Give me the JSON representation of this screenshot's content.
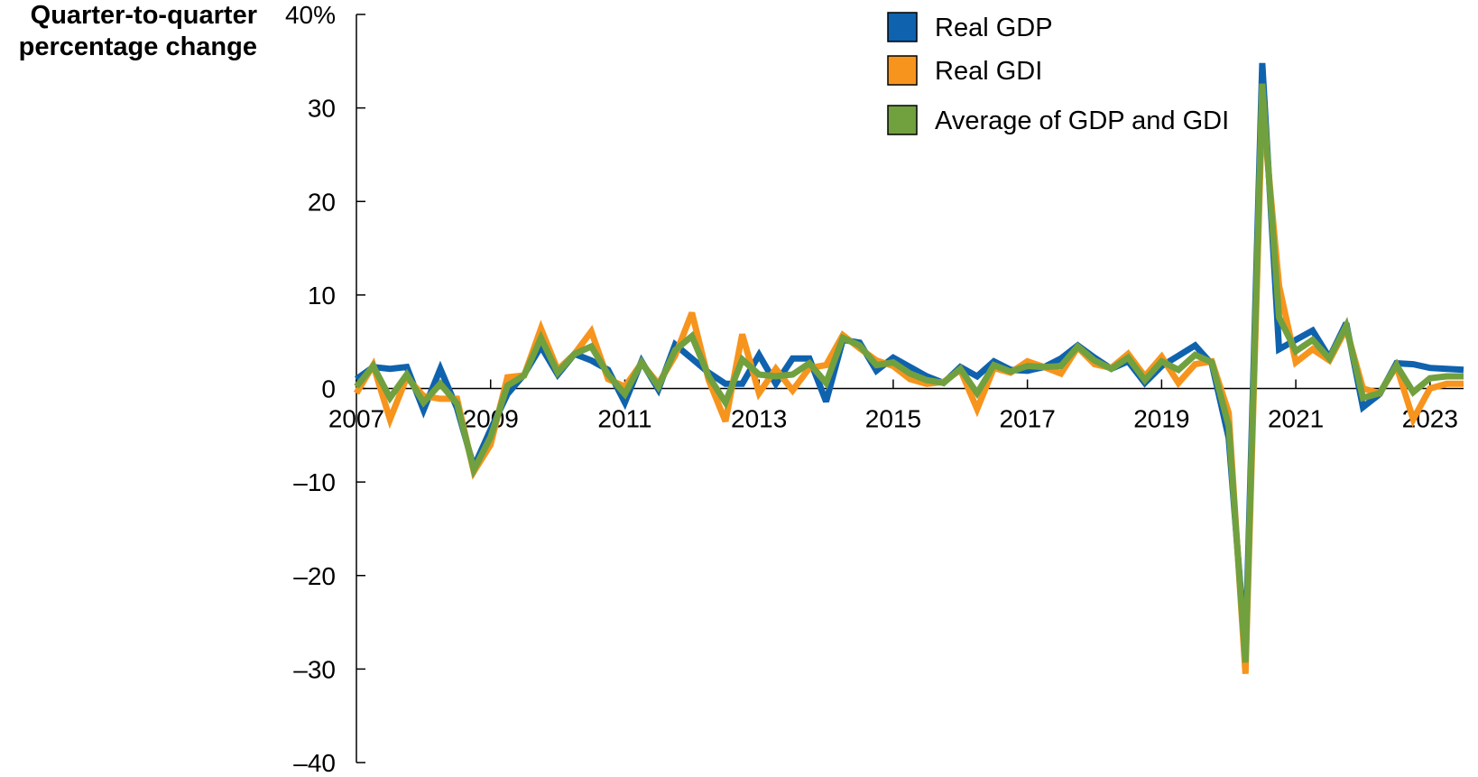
{
  "chart_data": {
    "type": "line",
    "ylabel_lines": [
      "Quarter-to-quarter",
      "percentage change"
    ],
    "y_ticks": [
      40,
      30,
      20,
      10,
      0,
      -10,
      -20,
      -30,
      -40
    ],
    "y_tick_labels": [
      "40%",
      "30",
      "20",
      "10",
      "0",
      "–10",
      "–20",
      "–30",
      "–40"
    ],
    "ylim": [
      -40,
      40
    ],
    "xlim": [
      2007.0,
      2023.5
    ],
    "x_ticks": [
      2007,
      2009,
      2011,
      2013,
      2015,
      2017,
      2019,
      2021,
      2023
    ],
    "x_tick_labels": [
      "2007",
      "2009",
      "2011",
      "2013",
      "2015",
      "2017",
      "2019",
      "2021",
      "2023"
    ],
    "legend_position": "top-right",
    "x": [
      2007.0,
      2007.25,
      2007.5,
      2007.75,
      2008.0,
      2008.25,
      2008.5,
      2008.75,
      2009.0,
      2009.25,
      2009.5,
      2009.75,
      2010.0,
      2010.25,
      2010.5,
      2010.75,
      2011.0,
      2011.25,
      2011.5,
      2011.75,
      2012.0,
      2012.25,
      2012.5,
      2012.75,
      2013.0,
      2013.25,
      2013.5,
      2013.75,
      2014.0,
      2014.25,
      2014.5,
      2014.75,
      2015.0,
      2015.25,
      2015.5,
      2015.75,
      2016.0,
      2016.25,
      2016.5,
      2016.75,
      2017.0,
      2017.25,
      2017.5,
      2017.75,
      2018.0,
      2018.25,
      2018.5,
      2018.75,
      2019.0,
      2019.25,
      2019.5,
      2019.75,
      2020.0,
      2020.25,
      2020.5,
      2020.75,
      2021.0,
      2021.25,
      2021.5,
      2021.75,
      2022.0,
      2022.25,
      2022.5,
      2022.75,
      2023.0,
      2023.25,
      2023.5
    ],
    "series": [
      {
        "name": "Real GDP",
        "color": "#0f62ae",
        "values": [
          1.0,
          2.3,
          2.1,
          2.3,
          -2.3,
          2.1,
          -2.1,
          -8.4,
          -4.4,
          -0.6,
          1.5,
          4.5,
          1.5,
          3.7,
          3.0,
          2.0,
          -1.5,
          2.9,
          -0.1,
          4.7,
          3.2,
          1.7,
          0.5,
          0.5,
          3.6,
          0.5,
          3.2,
          3.2,
          -1.4,
          5.2,
          4.9,
          1.9,
          3.3,
          2.3,
          1.3,
          0.6,
          2.3,
          1.3,
          2.9,
          2.0,
          1.9,
          2.3,
          3.2,
          4.6,
          3.3,
          2.1,
          2.9,
          0.6,
          2.4,
          3.5,
          4.6,
          2.6,
          -5.3,
          -28.0,
          34.8,
          4.2,
          5.2,
          6.2,
          3.3,
          7.0,
          -2.0,
          -0.6,
          2.7,
          2.6,
          2.2,
          2.1,
          2.0
        ]
      },
      {
        "name": "Real GDI",
        "color": "#f7941d",
        "values": [
          -0.5,
          2.5,
          -3.3,
          1.2,
          -0.8,
          -1.1,
          -1.1,
          -8.9,
          -6.0,
          1.2,
          1.4,
          6.4,
          2.0,
          3.7,
          6.1,
          1.0,
          0.2,
          2.7,
          0.5,
          3.5,
          8.1,
          0.9,
          -3.5,
          5.8,
          -0.5,
          2.1,
          -0.2,
          2.2,
          2.5,
          5.7,
          4.3,
          3.0,
          2.4,
          1.0,
          0.5,
          0.7,
          2.0,
          -2.2,
          2.2,
          1.7,
          2.9,
          2.3,
          1.6,
          4.4,
          2.6,
          2.2,
          3.7,
          1.3,
          3.4,
          0.6,
          2.6,
          2.9,
          -2.6,
          -30.5,
          30.5,
          11.0,
          2.8,
          4.2,
          3.0,
          6.4,
          0.0,
          -0.5,
          2.4,
          -3.3,
          0.0,
          0.5,
          0.5
        ]
      },
      {
        "name": "Average of GDP and GDI",
        "color": "#71a03f",
        "values": [
          0.2,
          2.4,
          -1.0,
          1.5,
          -1.5,
          0.5,
          -1.6,
          -8.7,
          -5.2,
          0.3,
          1.4,
          5.4,
          1.7,
          3.7,
          4.5,
          1.5,
          -0.6,
          2.8,
          0.2,
          4.1,
          5.6,
          1.3,
          -1.5,
          3.1,
          1.5,
          1.3,
          1.5,
          2.7,
          0.6,
          5.4,
          4.6,
          2.5,
          2.8,
          1.6,
          0.9,
          0.6,
          2.1,
          -0.5,
          2.5,
          1.8,
          2.4,
          2.3,
          2.4,
          4.5,
          3.0,
          2.1,
          3.3,
          0.9,
          2.9,
          2.0,
          3.6,
          2.8,
          -4.0,
          -29.3,
          32.6,
          7.6,
          4.0,
          5.2,
          3.2,
          6.7,
          -1.0,
          -0.5,
          2.5,
          -0.4,
          1.1,
          1.3,
          1.3
        ]
      }
    ]
  }
}
